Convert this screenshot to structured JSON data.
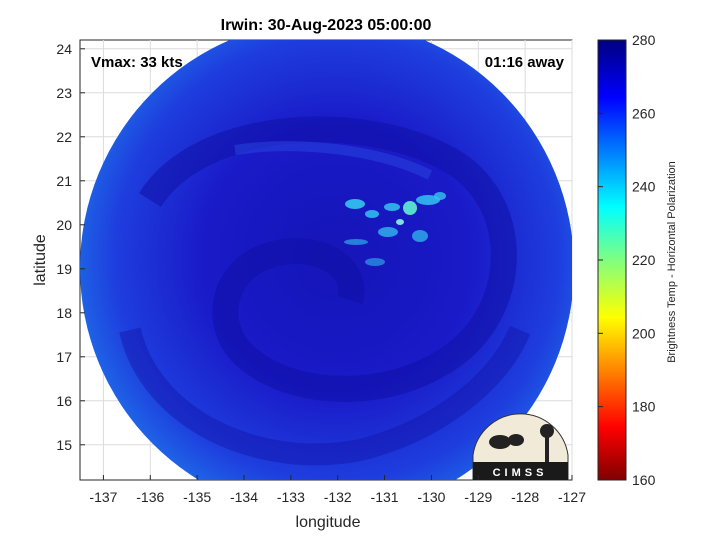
{
  "title": "Irwin: 30-Aug-2023 05:00:00",
  "overlay_left": "Vmax: 33 kts",
  "overlay_right": "01:16 away",
  "xlabel": "longitude",
  "ylabel": "latitude",
  "colorbar_label": "Brightness Temp - Horizontal Polarization",
  "logo_text": "CIMSS",
  "xticks": [
    "-137",
    "-136",
    "-135",
    "-134",
    "-133",
    "-132",
    "-131",
    "-130",
    "-129",
    "-128",
    "-127"
  ],
  "yticks": [
    "15",
    "16",
    "17",
    "18",
    "19",
    "20",
    "21",
    "22",
    "23",
    "24"
  ],
  "colorbar_ticks": [
    "160",
    "180",
    "200",
    "220",
    "240",
    "260",
    "280"
  ],
  "chart_data": {
    "type": "heatmap",
    "title": "Irwin: 30-Aug-2023 05:00:00",
    "xlabel": "longitude",
    "ylabel": "latitude",
    "xlim": [
      -137.5,
      -127
    ],
    "ylim": [
      14.2,
      24.2
    ],
    "colorbar": {
      "label": "Brightness Temp - Horizontal Polarization",
      "range": [
        160,
        280
      ]
    },
    "colormap": "jet",
    "swath_center": [
      -132.2,
      19.2
    ],
    "annotations": [
      "Vmax: 33 kts",
      "01:16 away"
    ],
    "grid": true
  }
}
